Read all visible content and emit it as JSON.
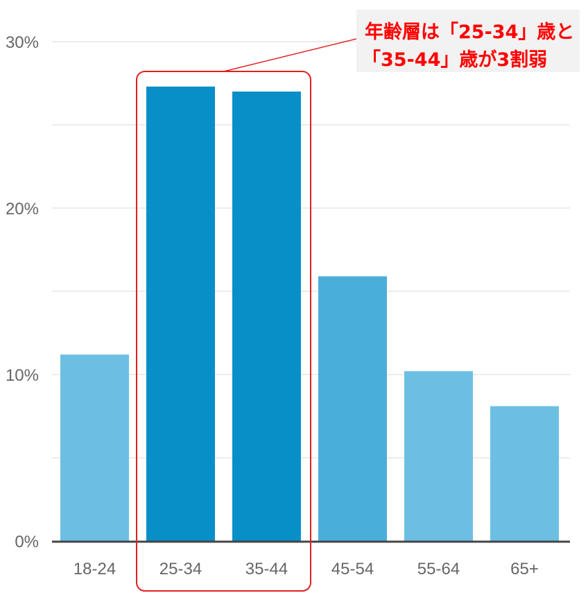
{
  "chart_data": {
    "type": "bar",
    "categories": [
      "18-24",
      "25-34",
      "35-44",
      "45-54",
      "55-64",
      "65+"
    ],
    "values": [
      11.2,
      27.3,
      27.0,
      15.9,
      10.2,
      8.1
    ],
    "highlighted": [
      "25-34",
      "35-44"
    ],
    "ylim": [
      0,
      30
    ],
    "yticks": [
      0,
      10,
      20,
      30
    ],
    "ytick_labels": [
      "0%",
      "10%",
      "20%",
      "30%"
    ],
    "grid": true,
    "colors": {
      "normal": "#6cbfe3",
      "mid": "#4aaedb",
      "highlight": "#088fc8",
      "highlight_border": "#e02020",
      "axis": "#444444",
      "grid": "#ececec"
    },
    "annotation": {
      "line1": "年齢層は「25-34」歳と",
      "line2": "「35-44」歳が3割弱"
    }
  }
}
